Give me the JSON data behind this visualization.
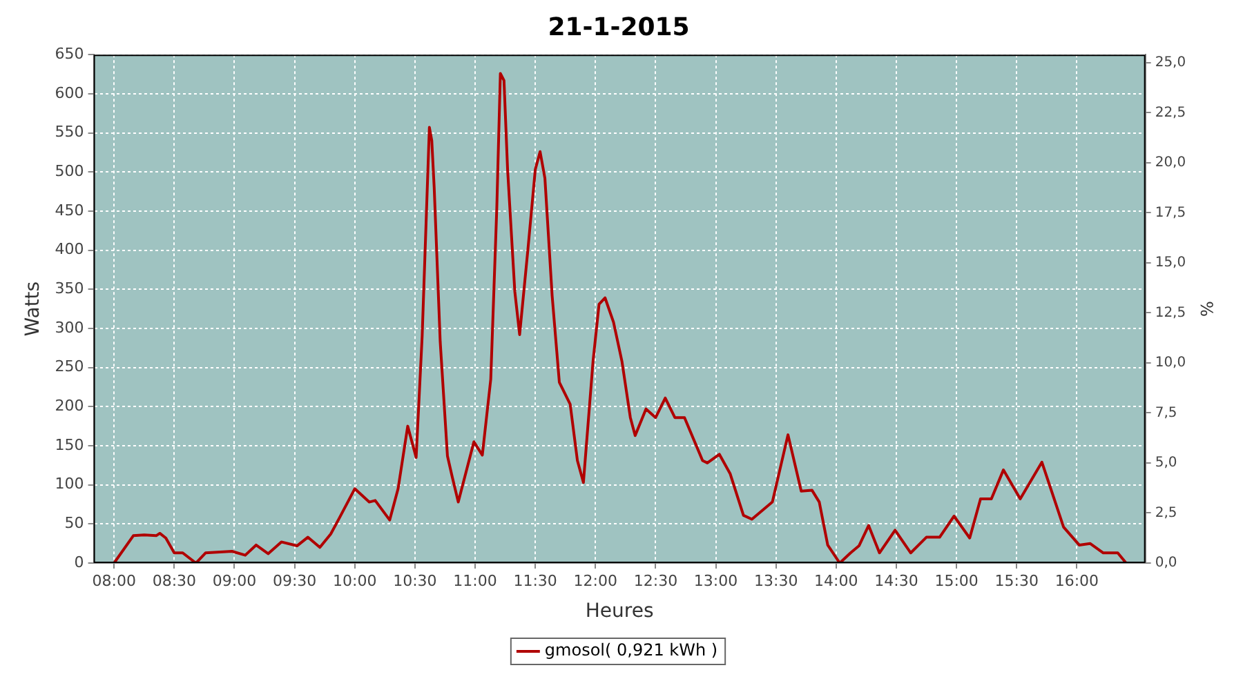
{
  "chart_data": {
    "type": "line",
    "title": "21-1-2015",
    "xlabel": "Heures",
    "ylabel": "Watts",
    "y2label": "%",
    "xlim": [
      7.83,
      16.57
    ],
    "xticks": [
      {
        "value": 8,
        "label": "08:00"
      },
      {
        "value": 8.5,
        "label": "08:30"
      },
      {
        "value": 9,
        "label": "09:00"
      },
      {
        "value": 9.5,
        "label": "09:30"
      },
      {
        "value": 10,
        "label": "10:00"
      },
      {
        "value": 10.5,
        "label": "10:30"
      },
      {
        "value": 11,
        "label": "11:00"
      },
      {
        "value": 11.5,
        "label": "11:30"
      },
      {
        "value": 12,
        "label": "12:00"
      },
      {
        "value": 12.5,
        "label": "12:30"
      },
      {
        "value": 13,
        "label": "13:00"
      },
      {
        "value": 13.5,
        "label": "13:30"
      },
      {
        "value": 14,
        "label": "14:00"
      },
      {
        "value": 14.5,
        "label": "14:30"
      },
      {
        "value": 15,
        "label": "15:00"
      },
      {
        "value": 15.5,
        "label": "15:30"
      },
      {
        "value": 16,
        "label": "16:00"
      }
    ],
    "ylim": [
      0,
      650
    ],
    "yticks": [
      0,
      50,
      100,
      150,
      200,
      250,
      300,
      350,
      400,
      450,
      500,
      550,
      600,
      650
    ],
    "y2lim": [
      0,
      25.4
    ],
    "y2ticks": [
      {
        "value": 0,
        "label": "0,0"
      },
      {
        "value": 2.5,
        "label": "2,5"
      },
      {
        "value": 5,
        "label": "5,0"
      },
      {
        "value": 7.5,
        "label": "7,5"
      },
      {
        "value": 10,
        "label": "10,0"
      },
      {
        "value": 12.5,
        "label": "12,5"
      },
      {
        "value": 15,
        "label": "15,0"
      },
      {
        "value": 17.5,
        "label": "17,5"
      },
      {
        "value": 20,
        "label": "20,0"
      },
      {
        "value": 22.5,
        "label": "22,5"
      },
      {
        "value": 25,
        "label": "25,0"
      }
    ],
    "grid": true,
    "legend": "bottom",
    "marker": "none",
    "line_style": "solid",
    "x": [
      8,
      8.16,
      8.25,
      8.35,
      8.38,
      8.43,
      8.5,
      8.57,
      8.68,
      8.76,
      8.98,
      9.09,
      9.18,
      9.28,
      9.39,
      9.52,
      9.61,
      9.71,
      9.8,
      9.87,
      10,
      10.12,
      10.17,
      10.29,
      10.36,
      10.44,
      10.51,
      10.56,
      10.62,
      10.64,
      10.66,
      10.71,
      10.77,
      10.81,
      10.86,
      10.99,
      11.06,
      11.13,
      11.18,
      11.21,
      11.24,
      11.27,
      11.33,
      11.37,
      11.44,
      11.5,
      11.54,
      11.58,
      11.64,
      11.7,
      11.79,
      11.85,
      11.9,
      11.98,
      12.03,
      12.08,
      12.15,
      12.22,
      12.29,
      12.33,
      12.42,
      12.5,
      12.58,
      12.66,
      12.74,
      12.89,
      12.93,
      13.03,
      13.12,
      13.23,
      13.3,
      13.47,
      13.6,
      13.71,
      13.8,
      13.86,
      13.93,
      14.03,
      14.12,
      14.19,
      14.27,
      14.36,
      14.49,
      14.62,
      14.75,
      14.86,
      14.98,
      15.11,
      15.2,
      15.29,
      15.39,
      15.53,
      15.71,
      15.89,
      16.02,
      16.11,
      16.22,
      16.34,
      16.41
    ],
    "series": [
      {
        "name": "gmosol( 0,921 kWh )",
        "color": "#b00000",
        "values": [
          0,
          35,
          36,
          35,
          38,
          32,
          13,
          13,
          0,
          13,
          15,
          10,
          23,
          12,
          27,
          22,
          33,
          20,
          37,
          57,
          95,
          78,
          80,
          55,
          95,
          175,
          135,
          290,
          557,
          540,
          480,
          283,
          137,
          110,
          78,
          155,
          138,
          235,
          453,
          626,
          617,
          503,
          347,
          292,
          403,
          503,
          526,
          492,
          342,
          231,
          203,
          131,
          103,
          258,
          331,
          339,
          308,
          258,
          186,
          163,
          197,
          186,
          211,
          186,
          186,
          131,
          128,
          139,
          114,
          61,
          56,
          78,
          164,
          92,
          93,
          78,
          23,
          0,
          13,
          22,
          48,
          13,
          42,
          13,
          33,
          33,
          60,
          32,
          82,
          82,
          119,
          82,
          129,
          46,
          23,
          25,
          13,
          13,
          0
        ]
      }
    ]
  }
}
